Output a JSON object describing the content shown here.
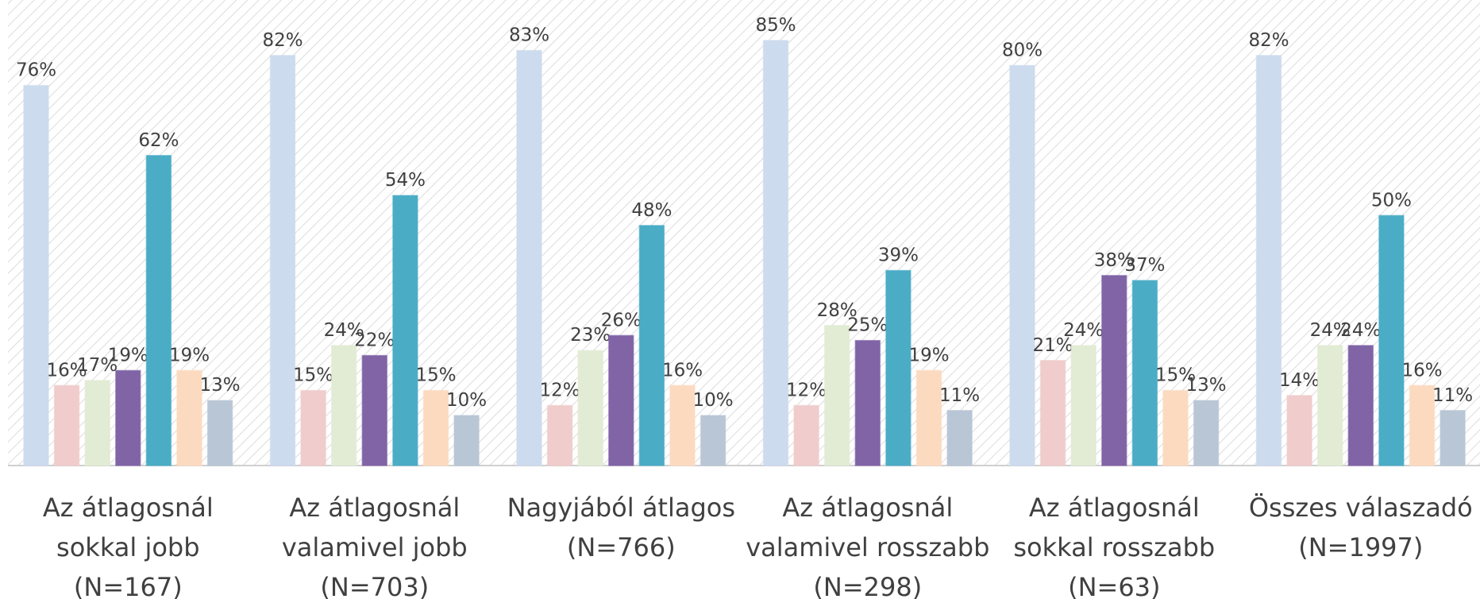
{
  "chart_data": {
    "type": "bar",
    "categories": [
      "Az átlagosnál\nsokkal jobb\n(N=167)",
      "Az átlagosnál\nvalamivel jobb\n(N=703)",
      "Nagyjából átlagos\n(N=766)",
      "Az átlagosnál\nvalamivel rosszabb\n(N=298)",
      "Az átlagosnál\nsokkal rosszabb\n(N=63)",
      "Összes válaszadó\n(N=1997)"
    ],
    "series": [
      {
        "color": "#cddbee",
        "values": [
          76,
          82,
          83,
          85,
          80,
          82
        ],
        "value_labels": [
          "76%",
          "82%",
          "83%",
          "85%",
          "80%",
          "82%"
        ]
      },
      {
        "color": "#f0cccc",
        "values": [
          16,
          15,
          12,
          12,
          21,
          14
        ],
        "value_labels": [
          "16%",
          "15%",
          "12%",
          "12%",
          "21%",
          "14%"
        ]
      },
      {
        "color": "#e2ebd4",
        "values": [
          17,
          24,
          23,
          28,
          24,
          24
        ],
        "value_labels": [
          "17%",
          "24%",
          "23%",
          "28%",
          "24%",
          "24%"
        ]
      },
      {
        "color": "#8064a6",
        "values": [
          19,
          22,
          26,
          25,
          38,
          24
        ],
        "value_labels": [
          "19%",
          "22%",
          "26%",
          "25%",
          "38%",
          "24%"
        ]
      },
      {
        "color": "#4bacc6",
        "values": [
          62,
          54,
          48,
          39,
          37,
          50
        ],
        "value_labels": [
          "62%",
          "54%",
          "48%",
          "39%",
          "37%",
          "50%"
        ]
      },
      {
        "color": "#fcdac0",
        "values": [
          19,
          15,
          16,
          19,
          15,
          16
        ],
        "value_labels": [
          "19%",
          "15%",
          "16%",
          "19%",
          "15%",
          "16%"
        ]
      },
      {
        "color": "#b9c6d6",
        "values": [
          13,
          10,
          10,
          11,
          13,
          11
        ],
        "value_labels": [
          "13%",
          "10%",
          "10%",
          "11%",
          "13%",
          "11%"
        ]
      }
    ]
  }
}
